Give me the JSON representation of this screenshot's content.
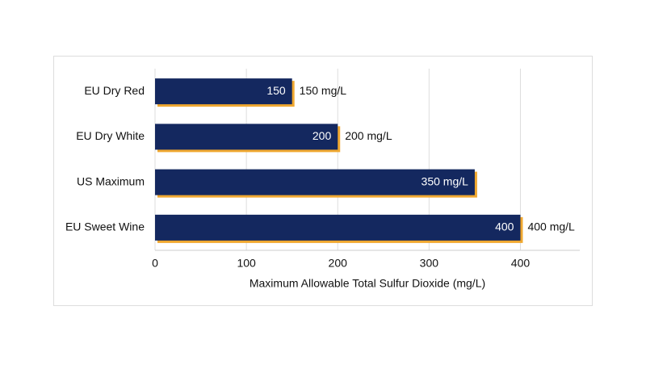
{
  "chart_data": {
    "type": "bar",
    "orientation": "horizontal",
    "x_label": "Maximum Allowable Total Sulfur Dioxide (mg/L)",
    "categories": [
      "EU Dry Red",
      "EU Dry White",
      "US Maximum",
      "EU Sweet Wine"
    ],
    "values": [
      150,
      200,
      350,
      400
    ],
    "value_labels": [
      "150",
      "200",
      "350 mg/L",
      "400"
    ],
    "outer_labels": [
      "150 mg/L",
      "200 mg/L",
      null,
      "400 mg/L"
    ],
    "color": "#14285f",
    "shadow_color": "#f0a830",
    "xlim": [
      0,
      465
    ],
    "xticks": [
      0,
      100,
      200,
      300,
      400
    ],
    "grid": true
  }
}
